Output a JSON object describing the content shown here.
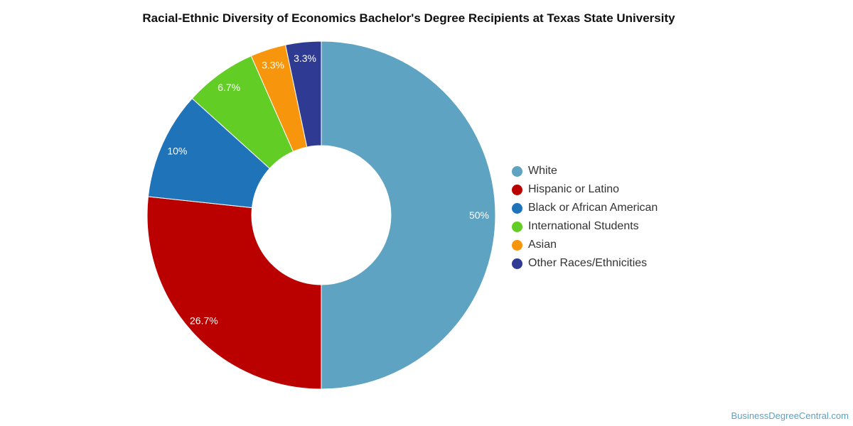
{
  "chart_data": {
    "type": "pie",
    "title": "Racial-Ethnic Diversity of Economics Bachelor's Degree Recipients at Texas State University",
    "donut": true,
    "legend_position": "right",
    "slices": [
      {
        "label": "White",
        "value": 50,
        "display": "50%",
        "color": "#5ea3c1"
      },
      {
        "label": "Hispanic or Latino",
        "value": 26.7,
        "display": "26.7%",
        "color": "#ba0100"
      },
      {
        "label": "Black or African American",
        "value": 10,
        "display": "10%",
        "color": "#1f73b9"
      },
      {
        "label": "International Students",
        "value": 6.7,
        "display": "6.7%",
        "color": "#62cd25"
      },
      {
        "label": "Asian",
        "value": 3.3,
        "display": "3.3%",
        "color": "#f7950c"
      },
      {
        "label": "Other Races/Ethnicities",
        "value": 3.3,
        "display": "3.3%",
        "color": "#2f3a92"
      }
    ]
  },
  "footer": {
    "credit": "BusinessDegreeCentral.com"
  }
}
